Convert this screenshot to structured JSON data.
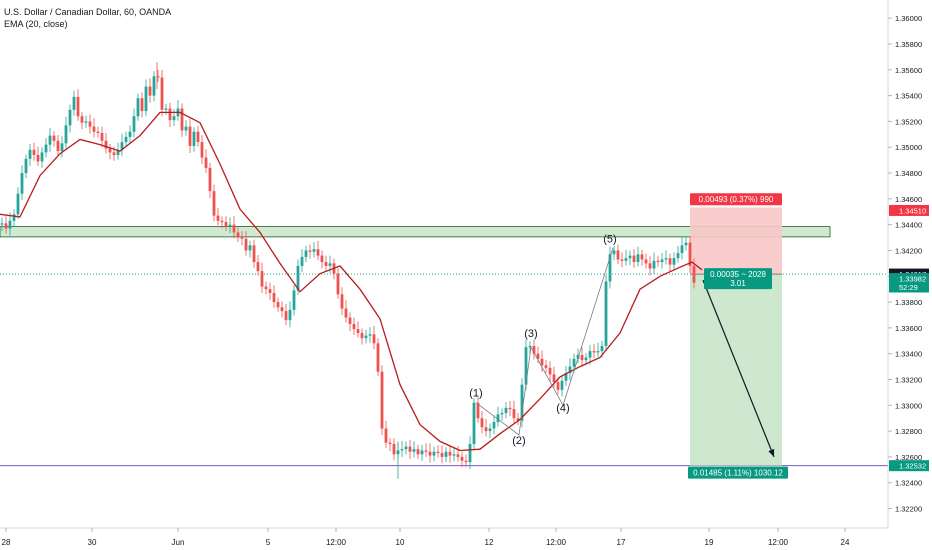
{
  "legend": {
    "symbol_line": "U.S. Dollar / Canadian Dollar, 60, OANDA",
    "indicator_line": "EMA (20, close)"
  },
  "colors": {
    "up_candle": "#26a69a",
    "down_candle": "#ef5350",
    "ema": "#b71c1c",
    "zone_fill": "#c8e6c9",
    "zone_border": "#1b5e20",
    "support_line": "#7e57c2",
    "stop_fill": "#f8c8c8",
    "target_fill": "#c8e6c9",
    "stop_label_bg": "#f23645",
    "target_label_bg": "#089981",
    "price_badge_bg": "#089981",
    "arrow": "#131722"
  },
  "chart_data": {
    "type": "candlestick",
    "symbol": "U.S. Dollar / Canadian Dollar",
    "interval": "60",
    "source": "OANDA",
    "indicator": "EMA (20, close)",
    "y_axis": {
      "ticks": [
        1.36,
        1.358,
        1.356,
        1.354,
        1.352,
        1.35,
        1.348,
        1.346,
        1.344,
        1.342,
        1.34,
        1.338,
        1.336,
        1.334,
        1.332,
        1.33,
        1.328,
        1.326,
        1.324,
        1.322
      ],
      "tick_labels": [
        "1.36000",
        "1.35800",
        "1.35600",
        "1.35400",
        "1.35200",
        "1.35000",
        "1.34800",
        "1.34600",
        "1.34400",
        "1.34200",
        "1.34000",
        "1.33800",
        "1.33600",
        "1.33400",
        "1.33200",
        "1.33000",
        "1.32800",
        "1.32600",
        "1.32400",
        "1.32200"
      ],
      "range": [
        1.3208,
        1.3611
      ]
    },
    "x_axis": {
      "tick_labels": [
        "28",
        "30",
        "Jun",
        "5",
        "12:00",
        "10",
        "12",
        "12:00",
        "17",
        "19",
        "12:00",
        "24"
      ]
    },
    "price_path": [
      [
        0,
        1.344
      ],
      [
        4,
        1.3441
      ],
      [
        8,
        1.3437
      ],
      [
        12,
        1.3443
      ],
      [
        16,
        1.3448
      ],
      [
        20,
        1.3464
      ],
      [
        24,
        1.348
      ],
      [
        28,
        1.3491
      ],
      [
        32,
        1.3498
      ],
      [
        36,
        1.3494
      ],
      [
        40,
        1.3489
      ],
      [
        44,
        1.3496
      ],
      [
        48,
        1.3502
      ],
      [
        52,
        1.3509
      ],
      [
        56,
        1.3505
      ],
      [
        60,
        1.3497
      ],
      [
        64,
        1.3503
      ],
      [
        68,
        1.3517
      ],
      [
        72,
        1.3529
      ],
      [
        76,
        1.3539
      ],
      [
        80,
        1.3524
      ],
      [
        84,
        1.3519
      ],
      [
        88,
        1.352
      ],
      [
        92,
        1.3516
      ],
      [
        96,
        1.3512
      ],
      [
        100,
        1.3511
      ],
      [
        104,
        1.3505
      ],
      [
        108,
        1.3499
      ],
      [
        112,
        1.3496
      ],
      [
        116,
        1.3494
      ],
      [
        120,
        1.3498
      ],
      [
        124,
        1.3504
      ],
      [
        128,
        1.3508
      ],
      [
        132,
        1.3512
      ],
      [
        136,
        1.3524
      ],
      [
        140,
        1.3538
      ],
      [
        144,
        1.3528
      ],
      [
        148,
        1.3547
      ],
      [
        152,
        1.354
      ],
      [
        156,
        1.3555
      ],
      [
        160,
        1.3554
      ],
      [
        164,
        1.3529
      ],
      [
        168,
        1.353
      ],
      [
        172,
        1.3521
      ],
      [
        176,
        1.3524
      ],
      [
        180,
        1.353
      ],
      [
        184,
        1.3513
      ],
      [
        188,
        1.3516
      ],
      [
        192,
        1.3501
      ],
      [
        196,
        1.3512
      ],
      [
        200,
        1.3504
      ],
      [
        204,
        1.3492
      ],
      [
        208,
        1.3484
      ],
      [
        212,
        1.3466
      ],
      [
        216,
        1.3447
      ],
      [
        220,
        1.3443
      ],
      [
        224,
        1.3442
      ],
      [
        228,
        1.3439
      ],
      [
        232,
        1.344
      ],
      [
        236,
        1.3434
      ],
      [
        240,
        1.343
      ],
      [
        244,
        1.3429
      ],
      [
        248,
        1.342
      ],
      [
        252,
        1.3424
      ],
      [
        256,
        1.3411
      ],
      [
        260,
        1.3404
      ],
      [
        264,
        1.3392
      ],
      [
        268,
        1.339
      ],
      [
        272,
        1.3387
      ],
      [
        276,
        1.338
      ],
      [
        280,
        1.3376
      ],
      [
        284,
        1.3373
      ],
      [
        288,
        1.3366
      ],
      [
        292,
        1.3374
      ],
      [
        296,
        1.3389
      ],
      [
        300,
        1.3408
      ],
      [
        304,
        1.3415
      ],
      [
        308,
        1.342
      ],
      [
        312,
        1.3419
      ],
      [
        316,
        1.3421
      ],
      [
        320,
        1.3416
      ],
      [
        324,
        1.3411
      ],
      [
        328,
        1.3408
      ],
      [
        332,
        1.341
      ],
      [
        336,
        1.3402
      ],
      [
        340,
        1.3386
      ],
      [
        344,
        1.3375
      ],
      [
        348,
        1.3368
      ],
      [
        352,
        1.3363
      ],
      [
        356,
        1.3359
      ],
      [
        360,
        1.3356
      ],
      [
        364,
        1.3352
      ],
      [
        368,
        1.3354
      ],
      [
        372,
        1.3355
      ],
      [
        376,
        1.3348
      ],
      [
        380,
        1.3326
      ],
      [
        384,
        1.3282
      ],
      [
        388,
        1.3271
      ],
      [
        392,
        1.327
      ],
      [
        396,
        1.3262
      ],
      [
        400,
        1.3265
      ],
      [
        404,
        1.3266
      ],
      [
        408,
        1.3268
      ],
      [
        412,
        1.3264
      ],
      [
        416,
        1.3266
      ],
      [
        420,
        1.3262
      ],
      [
        424,
        1.3265
      ],
      [
        428,
        1.3264
      ],
      [
        432,
        1.3261
      ],
      [
        436,
        1.3264
      ],
      [
        440,
        1.3263
      ],
      [
        444,
        1.326
      ],
      [
        448,
        1.3264
      ],
      [
        452,
        1.3261
      ],
      [
        456,
        1.3262
      ],
      [
        460,
        1.326
      ],
      [
        464,
        1.3257
      ],
      [
        468,
        1.3256
      ],
      [
        472,
        1.327
      ],
      [
        476,
        1.3302
      ],
      [
        480,
        1.329
      ],
      [
        484,
        1.3283
      ],
      [
        488,
        1.328
      ],
      [
        492,
        1.3282
      ],
      [
        496,
        1.3287
      ],
      [
        500,
        1.3293
      ],
      [
        504,
        1.3294
      ],
      [
        508,
        1.3298
      ],
      [
        512,
        1.3297
      ],
      [
        516,
        1.329
      ],
      [
        520,
        1.3288
      ],
      [
        524,
        1.3316
      ],
      [
        528,
        1.3345
      ],
      [
        532,
        1.3346
      ],
      [
        536,
        1.334
      ],
      [
        540,
        1.3336
      ],
      [
        544,
        1.3331
      ],
      [
        548,
        1.3329
      ],
      [
        552,
        1.3324
      ],
      [
        556,
        1.3318
      ],
      [
        560,
        1.3312
      ],
      [
        564,
        1.3319
      ],
      [
        568,
        1.3325
      ],
      [
        572,
        1.333
      ],
      [
        576,
        1.3336
      ],
      [
        580,
        1.3339
      ],
      [
        584,
        1.3335
      ],
      [
        588,
        1.3337
      ],
      [
        592,
        1.3342
      ],
      [
        596,
        1.3341
      ],
      [
        600,
        1.3342
      ],
      [
        604,
        1.3346
      ],
      [
        608,
        1.3396
      ],
      [
        612,
        1.3417
      ],
      [
        616,
        1.342
      ],
      [
        620,
        1.3413
      ],
      [
        624,
        1.3412
      ],
      [
        628,
        1.3414
      ],
      [
        632,
        1.3416
      ],
      [
        636,
        1.3411
      ],
      [
        640,
        1.3417
      ],
      [
        644,
        1.3413
      ],
      [
        648,
        1.341
      ],
      [
        652,
        1.3406
      ],
      [
        656,
        1.3412
      ],
      [
        660,
        1.3411
      ],
      [
        664,
        1.3413
      ],
      [
        668,
        1.3414
      ],
      [
        672,
        1.3409
      ],
      [
        676,
        1.3414
      ],
      [
        680,
        1.3418
      ],
      [
        684,
        1.3424
      ],
      [
        688,
        1.3426
      ],
      [
        692,
        1.3408
      ],
      [
        696,
        1.3395
      ]
    ],
    "ema_path": [
      [
        0,
        1.3448
      ],
      [
        20,
        1.3446
      ],
      [
        40,
        1.3478
      ],
      [
        60,
        1.3495
      ],
      [
        80,
        1.3506
      ],
      [
        100,
        1.3502
      ],
      [
        120,
        1.3497
      ],
      [
        140,
        1.3509
      ],
      [
        160,
        1.3527
      ],
      [
        180,
        1.3527
      ],
      [
        200,
        1.3519
      ],
      [
        220,
        1.3487
      ],
      [
        240,
        1.3452
      ],
      [
        260,
        1.3434
      ],
      [
        280,
        1.341
      ],
      [
        300,
        1.3388
      ],
      [
        320,
        1.3402
      ],
      [
        340,
        1.3408
      ],
      [
        360,
        1.339
      ],
      [
        380,
        1.3367
      ],
      [
        400,
        1.3316
      ],
      [
        420,
        1.3285
      ],
      [
        440,
        1.3272
      ],
      [
        460,
        1.3265
      ],
      [
        480,
        1.3266
      ],
      [
        500,
        1.3278
      ],
      [
        520,
        1.3289
      ],
      [
        540,
        1.3305
      ],
      [
        560,
        1.3322
      ],
      [
        580,
        1.333
      ],
      [
        600,
        1.3337
      ],
      [
        620,
        1.3356
      ],
      [
        640,
        1.339
      ],
      [
        660,
        1.34
      ],
      [
        680,
        1.3407
      ],
      [
        692,
        1.3411
      ],
      [
        702,
        1.3405
      ]
    ],
    "resistance_zone": {
      "top": 1.34385,
      "bottom": 1.34305
    },
    "support_line": 1.32532,
    "wave_labels": [
      {
        "label": "(1)",
        "x": 476,
        "price": 1.3307
      },
      {
        "label": "(2)",
        "x": 519,
        "price": 1.327
      },
      {
        "label": "(3)",
        "x": 531,
        "price": 1.3353
      },
      {
        "label": "(4)",
        "x": 563,
        "price": 1.3295
      },
      {
        "label": "(5)",
        "x": 610,
        "price": 1.3426
      }
    ],
    "wave_path": [
      [
        476,
        1.3302
      ],
      [
        519,
        1.3277
      ],
      [
        531,
        1.3345
      ],
      [
        563,
        1.33
      ],
      [
        613,
        1.3422
      ]
    ],
    "position": {
      "type": "short",
      "entry": 1.34017,
      "stop": 1.3451,
      "target": 1.32532,
      "stop_label": "0.00493 (0.37%) 990",
      "mid_label_1": "0.00035 ~ 2028",
      "mid_label_2": "3.01",
      "target_label": "0.01485 (1.11%) 1030.12"
    },
    "projection_arrow": {
      "from": [
        703,
        1.3397
      ],
      "to": [
        774,
        1.326
      ]
    },
    "price_badges": [
      {
        "value": "1.34510",
        "price": 1.3451,
        "color": "#f23645"
      },
      {
        "value": "1.34017",
        "price": 1.34017,
        "color": "#131722"
      },
      {
        "value": "1.33982",
        "price": 1.33982,
        "color": "#089981"
      },
      {
        "value": "52:29",
        "price": 1.33917,
        "color": "#089981"
      },
      {
        "value": "1.32532",
        "price": 1.32532,
        "color": "#089981"
      }
    ]
  }
}
